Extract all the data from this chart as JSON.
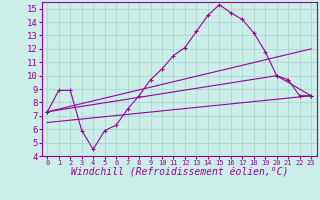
{
  "xlabel": "Windchill (Refroidissement éolien,°C)",
  "xlim": [
    -0.5,
    23.5
  ],
  "ylim": [
    4,
    15.5
  ],
  "xticks": [
    0,
    1,
    2,
    3,
    4,
    5,
    6,
    7,
    8,
    9,
    10,
    11,
    12,
    13,
    14,
    15,
    16,
    17,
    18,
    19,
    20,
    21,
    22,
    23
  ],
  "yticks": [
    4,
    5,
    6,
    7,
    8,
    9,
    10,
    11,
    12,
    13,
    14,
    15
  ],
  "background_color": "#cceee8",
  "grid_color": "#aad8d0",
  "line_color": "#990099",
  "line1_x": [
    0,
    1,
    2,
    3,
    4,
    5,
    6,
    7,
    8,
    9,
    10,
    11,
    12,
    13,
    14,
    15,
    16,
    17,
    18,
    19,
    20,
    21,
    22,
    23
  ],
  "line1_y": [
    7.3,
    8.9,
    8.9,
    5.9,
    4.5,
    5.9,
    6.3,
    7.5,
    8.5,
    9.7,
    10.5,
    11.5,
    12.1,
    13.3,
    14.5,
    15.3,
    14.7,
    14.2,
    13.2,
    11.8,
    10.0,
    9.7,
    8.5,
    8.5
  ],
  "line2_x": [
    0,
    23
  ],
  "line2_y": [
    6.5,
    8.5
  ],
  "line3_x": [
    0,
    23
  ],
  "line3_y": [
    7.3,
    12.0
  ],
  "line4_x": [
    0,
    20,
    23
  ],
  "line4_y": [
    7.3,
    10.0,
    8.5
  ],
  "xtick_fontsize": 5.0,
  "ytick_fontsize": 6.5,
  "xlabel_fontsize": 7.0
}
